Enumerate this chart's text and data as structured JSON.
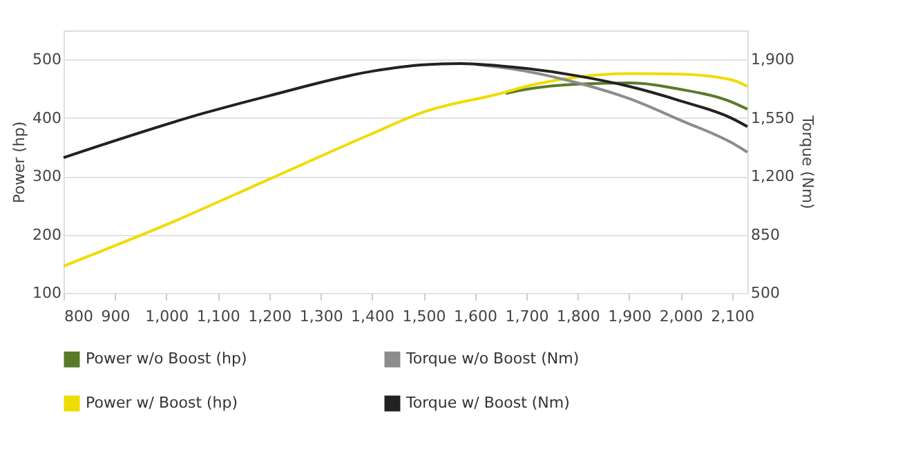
{
  "chart_data": {
    "type": "line",
    "ylabel": "Power (hp)",
    "y2label": "Torque (Nm)",
    "xlim": [
      800,
      2130
    ],
    "xticks": [
      800,
      900,
      {
        "value": 1000,
        "label": "1,000"
      },
      {
        "value": 1100,
        "label": "1,100"
      },
      {
        "value": 1200,
        "label": "1,200"
      },
      {
        "value": 1300,
        "label": "1,300"
      },
      {
        "value": 1400,
        "label": "1,400"
      },
      {
        "value": 1500,
        "label": "1,500"
      },
      {
        "value": 1600,
        "label": "1,600"
      },
      {
        "value": 1700,
        "label": "1,700"
      },
      {
        "value": 1800,
        "label": "1,800"
      },
      {
        "value": 1900,
        "label": "1,900"
      },
      {
        "value": 2000,
        "label": "2,000"
      },
      {
        "value": 2100,
        "label": "2,100"
      }
    ],
    "ylim": [
      100,
      550
    ],
    "yticks": [
      100,
      200,
      300,
      400,
      500
    ],
    "y2lim": [
      500,
      2075
    ],
    "y2ticks": [
      500,
      850,
      {
        "value": 1200,
        "label": "1,200"
      },
      {
        "value": 1550,
        "label": "1,550"
      },
      {
        "value": 1900,
        "label": "1,900"
      }
    ],
    "grid": "y",
    "legend": "bottom",
    "marker": "none",
    "line_style": "solid",
    "series": [
      {
        "name": "Power w/o Boost (hp)",
        "color": "#5a7a2a",
        "x": [
          1660,
          1700,
          1800,
          1900,
          2000,
          2100,
          2130
        ],
        "values": [
          442,
          449,
          458,
          460,
          449,
          427,
          415
        ]
      },
      {
        "name": "Power w/ Boost (hp)",
        "color": "#f0dc00",
        "x": [
          800,
          1000,
          1200,
          1400,
          1500,
          1650,
          1700,
          1800,
          1900,
          2000,
          2100,
          2130
        ],
        "values": [
          146,
          217,
          295,
          373,
          410,
          442,
          454,
          470,
          476,
          475,
          465,
          454
        ]
      },
      {
        "name": "Torque w/o Boost (Nm)",
        "color": "#8c8c8c",
        "axis": "y2",
        "x": [
          1600,
          1700,
          1800,
          1900,
          2000,
          2100,
          2130
        ],
        "values": [
          1872,
          1830,
          1760,
          1666,
          1536,
          1400,
          1344
        ]
      },
      {
        "name": "Torque w/ Boost (Nm)",
        "color": "#222222",
        "axis": "y2",
        "x": [
          800,
          1077,
          1200,
          1400,
          1500,
          1570,
          1650,
          1800,
          1900,
          2000,
          2100,
          2130
        ],
        "values": [
          1312,
          1582,
          1683,
          1830,
          1869,
          1876,
          1862,
          1802,
          1739,
          1652,
          1547,
          1498
        ]
      }
    ]
  }
}
